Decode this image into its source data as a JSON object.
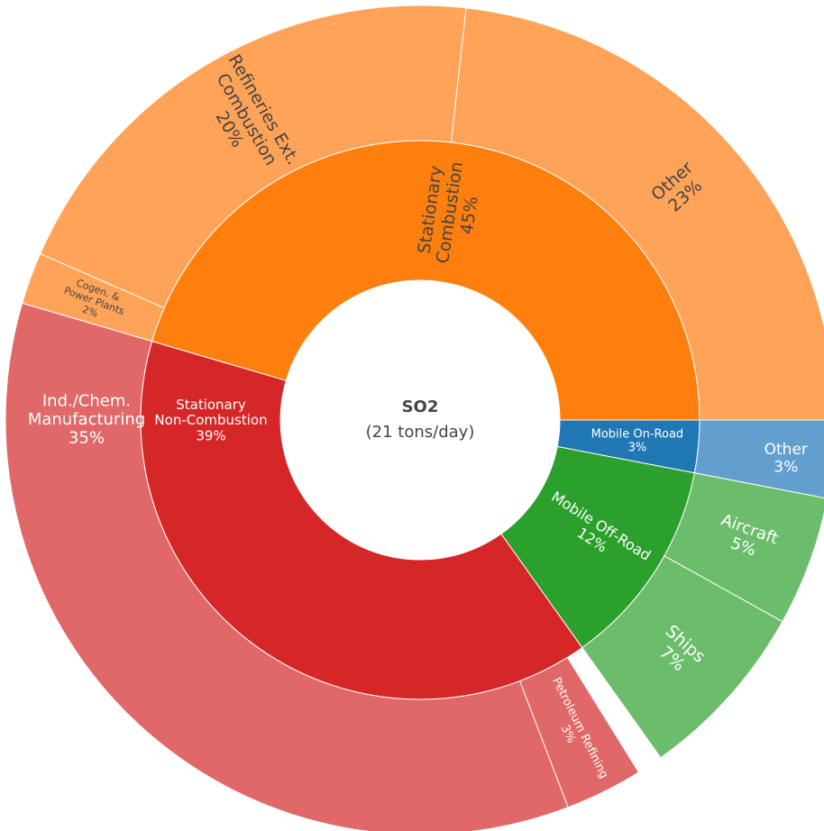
{
  "chart_data": {
    "type": "sunburst",
    "center_text": [
      "SO2",
      "(21 tons/day)"
    ],
    "nodes": [
      {
        "name": [
          "Stationary",
          "Combustion"
        ],
        "value": 45,
        "label": "45%",
        "color": "#ff7f0e",
        "children": [
          {
            "name": [
              "Other"
            ],
            "value": 23,
            "label": "23%",
            "color": "#ffa358"
          },
          {
            "name": [
              "Refineries Ext.",
              "Combustion"
            ],
            "value": 20,
            "label": "20%",
            "color": "#ffa358"
          },
          {
            "name": [
              "Cogen. &",
              "Power Plants"
            ],
            "value": 2,
            "label": "2%",
            "color": "#ffa358"
          }
        ]
      },
      {
        "name": [
          "Stationary",
          "Non-Combustion"
        ],
        "value": 39,
        "label": "39%",
        "color": "#d62728",
        "children": [
          {
            "name": [
              "Ind./Chem.",
              "Manufacturing"
            ],
            "value": 35,
            "label": "35%",
            "color": "#e06869"
          },
          {
            "name": [
              "Petroleum Refining"
            ],
            "value": 3,
            "label": "3%",
            "color": "#e06869"
          }
        ]
      },
      {
        "name": [
          "Mobile Off-Road"
        ],
        "value": 12,
        "label": "12%",
        "color": "#2ca02c",
        "children": [
          {
            "name": [
              "Ships"
            ],
            "value": 7,
            "label": "7%",
            "color": "#6bbc6b"
          },
          {
            "name": [
              "Aircraft"
            ],
            "value": 5,
            "label": "5%",
            "color": "#6bbc6b"
          }
        ]
      },
      {
        "name": [
          "Mobile On-Road"
        ],
        "value": 3,
        "label": "3%",
        "color": "#1f77b4",
        "children": [
          {
            "name": [
              "Other"
            ],
            "value": 3,
            "label": "3%",
            "color": "#629fcf"
          }
        ]
      }
    ]
  }
}
